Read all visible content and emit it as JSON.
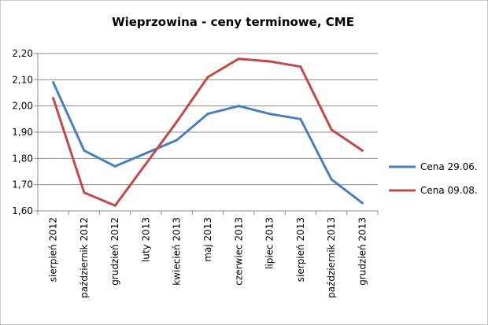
{
  "chart_data": {
    "type": "line",
    "title": "Wieprzowina - ceny terminowe, CME",
    "categories": [
      "sierpień 2012",
      "październik 2012",
      "grudzień 2012",
      "luty 2013",
      "kwiecień 2013",
      "maj 2013",
      "czerwiec 2013",
      "lipiec 2013",
      "sierpień 2013",
      "październik 2013",
      "grudzień 2013"
    ],
    "y_tick_labels": [
      "1,60",
      "1,70",
      "1,80",
      "1,90",
      "2,00",
      "2,10",
      "2,20"
    ],
    "ylim": [
      1.6,
      2.2
    ],
    "grid": "horizontal",
    "legend_position": "right",
    "series": [
      {
        "name": "Cena 29.06.",
        "color": "#4a7ebb",
        "values": [
          2.09,
          1.83,
          1.77,
          1.82,
          1.87,
          1.97,
          2.0,
          1.97,
          1.95,
          1.72,
          1.63
        ]
      },
      {
        "name": "Cena 09.08.",
        "color": "#be4b48",
        "values": [
          2.03,
          1.67,
          1.62,
          1.78,
          1.94,
          2.11,
          2.18,
          2.17,
          2.15,
          1.91,
          1.83
        ]
      }
    ]
  }
}
